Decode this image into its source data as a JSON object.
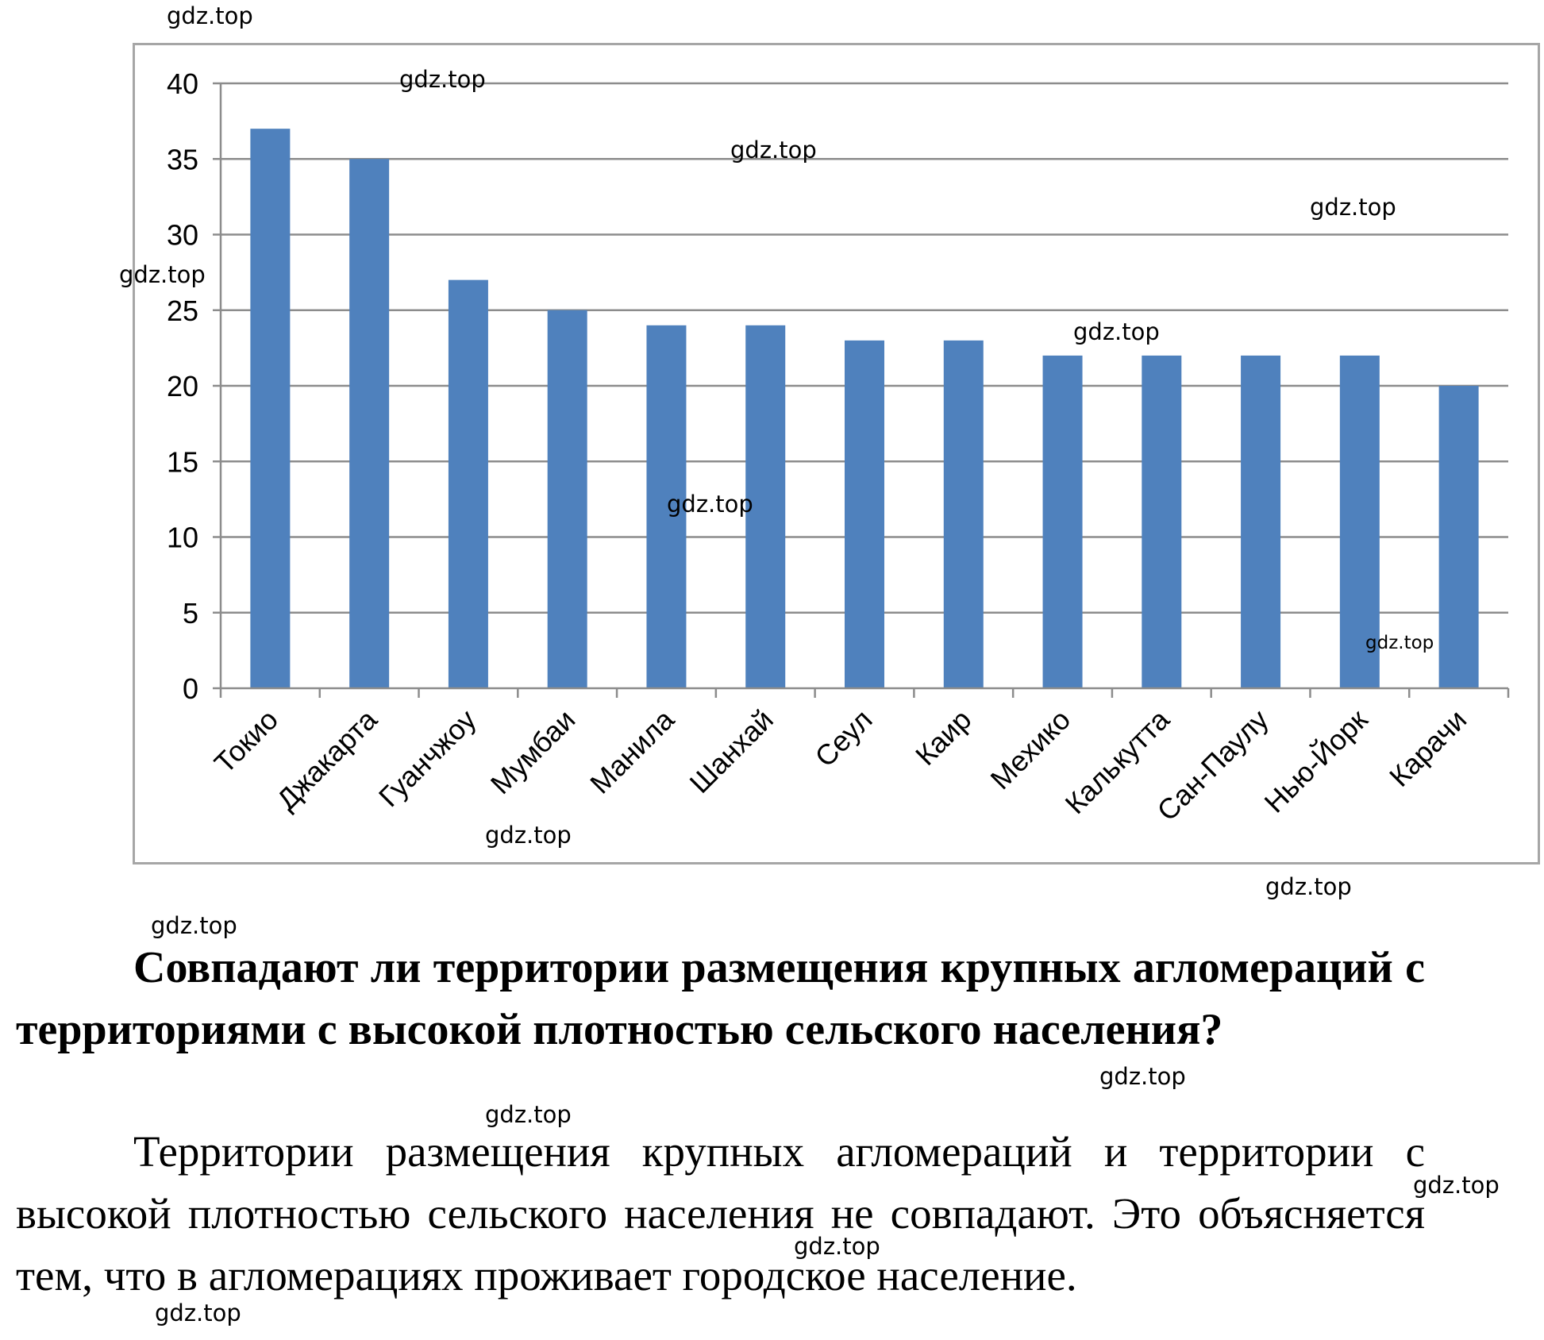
{
  "chart_data": {
    "type": "bar",
    "categories": [
      "Токио",
      "Джакарта",
      "Гуанчжоу",
      "Мумбаи",
      "Манила",
      "Шанхай",
      "Сеул",
      "Каир",
      "Мехико",
      "Калькутта",
      "Сан-Паулу",
      "Нью-Йорк",
      "Карачи"
    ],
    "values": [
      37,
      35,
      27,
      25,
      24,
      24,
      23,
      23,
      22,
      22,
      22,
      22,
      20
    ],
    "ylim": [
      0,
      40
    ],
    "yticks": [
      "0",
      "5",
      "10",
      "15",
      "20",
      "25",
      "30",
      "35",
      "40"
    ],
    "grid": true,
    "bar_color": "#4f81bd",
    "title": "",
    "xlabel": "",
    "ylabel": ""
  },
  "text": {
    "question": "Совпадают ли территории размещения крупных агломераций с территориями с высокой плотностью сельского населения?",
    "answer": "Территории размещения крупных агломераций и территории с высокой плотностью сельского населения не совпадают. Это объясняется тем, что в агломерациях проживает городское население."
  },
  "watermark": "gdz.top"
}
